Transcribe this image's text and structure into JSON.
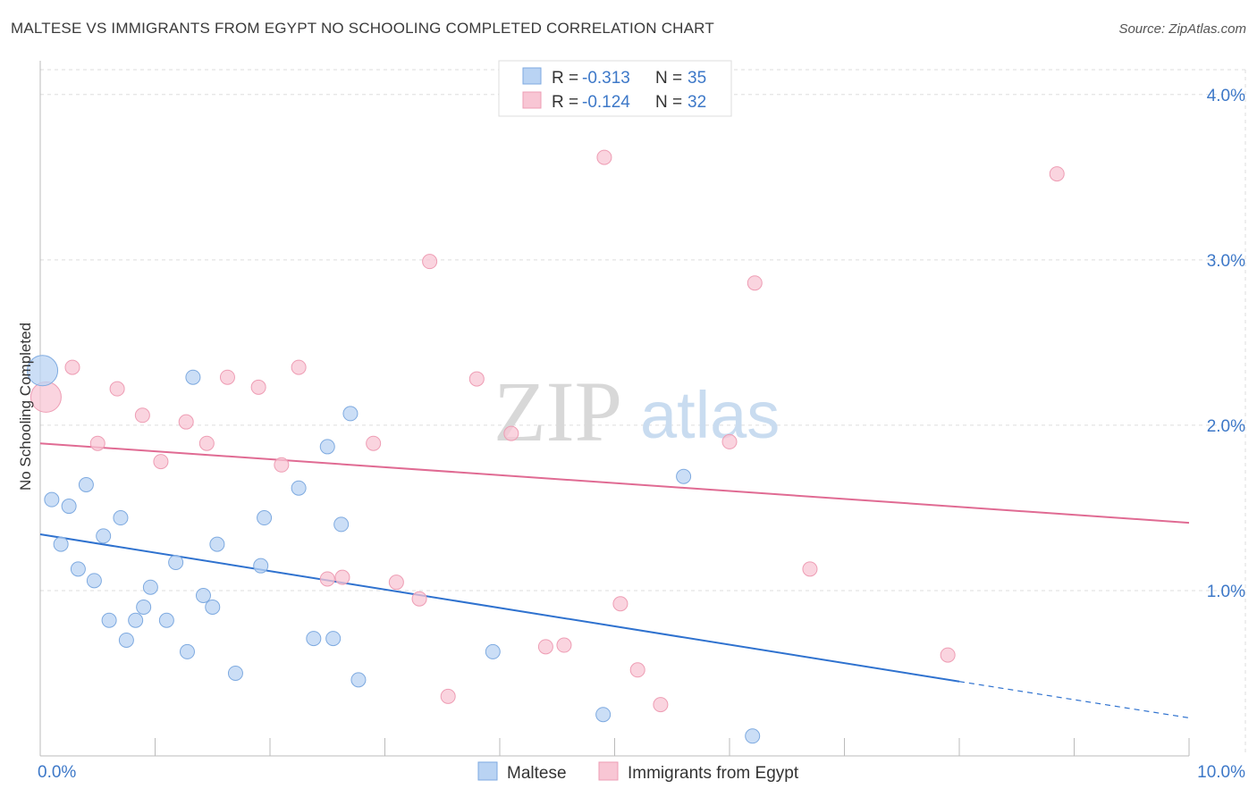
{
  "title": "MALTESE VS IMMIGRANTS FROM EGYPT NO SCHOOLING COMPLETED CORRELATION CHART",
  "source": "Source: ZipAtlas.com",
  "watermark": {
    "zip": "ZIP",
    "atlas": "atlas"
  },
  "colors": {
    "maltese_fill": "#b9d3f3",
    "maltese_stroke": "#7eaae0",
    "maltese_line": "#2f72cf",
    "egypt_fill": "#f8c6d4",
    "egypt_stroke": "#ee9db4",
    "egypt_line": "#e06b93",
    "tick_label": "#3d78c8",
    "grid": "#dddddd"
  },
  "legend": {
    "rows": [
      {
        "r_label": "R = ",
        "r_value": "-0.313",
        "n_label": "N = ",
        "n_value": "35"
      },
      {
        "r_label": "R = ",
        "r_value": "-0.124",
        "n_label": "N = ",
        "n_value": "32"
      }
    ]
  },
  "chart_data": {
    "type": "scatter",
    "title": "MALTESE VS IMMIGRANTS FROM EGYPT NO SCHOOLING COMPLETED CORRELATION CHART",
    "xlabel": "",
    "ylabel": "No Schooling Completed",
    "xlim": [
      0,
      10
    ],
    "ylim": [
      0,
      4.15
    ],
    "x_tick_labels": [
      {
        "value": 0,
        "label": "0.0%"
      },
      {
        "value": 10,
        "label": "10.0%"
      }
    ],
    "y_tick_labels": [
      {
        "value": 1,
        "label": "1.0%"
      },
      {
        "value": 2,
        "label": "2.0%"
      },
      {
        "value": 3,
        "label": "3.0%"
      },
      {
        "value": 4,
        "label": "4.0%"
      }
    ],
    "x_minor_ticks": [
      1,
      2,
      3,
      4,
      5,
      6,
      7,
      8,
      9,
      10
    ],
    "grid": true,
    "legend_position": "top-center",
    "series": [
      {
        "name": "Maltese",
        "r": -0.313,
        "n": 35,
        "trend": {
          "x0": 0,
          "y0": 1.34,
          "x1": 8.0,
          "y1": 0.45,
          "dashed_to_x": 10,
          "dashed_to_y": 0.23
        },
        "points": [
          {
            "x": 0.02,
            "y": 2.33,
            "size": "large"
          },
          {
            "x": 0.1,
            "y": 1.55
          },
          {
            "x": 0.18,
            "y": 1.28
          },
          {
            "x": 0.25,
            "y": 1.51
          },
          {
            "x": 0.33,
            "y": 1.13
          },
          {
            "x": 0.4,
            "y": 1.64
          },
          {
            "x": 0.47,
            "y": 1.06
          },
          {
            "x": 0.55,
            "y": 1.33
          },
          {
            "x": 0.6,
            "y": 0.82
          },
          {
            "x": 0.7,
            "y": 1.44
          },
          {
            "x": 0.75,
            "y": 0.7
          },
          {
            "x": 0.83,
            "y": 0.82
          },
          {
            "x": 0.9,
            "y": 0.9
          },
          {
            "x": 0.96,
            "y": 1.02
          },
          {
            "x": 1.1,
            "y": 0.82
          },
          {
            "x": 1.18,
            "y": 1.17
          },
          {
            "x": 1.28,
            "y": 0.63
          },
          {
            "x": 1.33,
            "y": 2.29
          },
          {
            "x": 1.42,
            "y": 0.97
          },
          {
            "x": 1.5,
            "y": 0.9
          },
          {
            "x": 1.54,
            "y": 1.28
          },
          {
            "x": 1.7,
            "y": 0.5
          },
          {
            "x": 1.92,
            "y": 1.15
          },
          {
            "x": 1.95,
            "y": 1.44
          },
          {
            "x": 2.25,
            "y": 1.62
          },
          {
            "x": 2.38,
            "y": 0.71
          },
          {
            "x": 2.5,
            "y": 1.87
          },
          {
            "x": 2.55,
            "y": 0.71
          },
          {
            "x": 2.62,
            "y": 1.4
          },
          {
            "x": 2.7,
            "y": 2.07
          },
          {
            "x": 2.77,
            "y": 0.46
          },
          {
            "x": 3.94,
            "y": 0.63
          },
          {
            "x": 4.9,
            "y": 0.25
          },
          {
            "x": 5.6,
            "y": 1.69
          },
          {
            "x": 6.2,
            "y": 0.12
          }
        ]
      },
      {
        "name": "Immigrants from Egypt",
        "r": -0.124,
        "n": 32,
        "trend": {
          "x0": 0,
          "y0": 1.89,
          "x1": 10,
          "y1": 1.41
        },
        "points": [
          {
            "x": 0.05,
            "y": 2.17,
            "size": "large"
          },
          {
            "x": 0.28,
            "y": 2.35
          },
          {
            "x": 0.5,
            "y": 1.89
          },
          {
            "x": 0.67,
            "y": 2.22
          },
          {
            "x": 0.89,
            "y": 2.06
          },
          {
            "x": 1.05,
            "y": 1.78
          },
          {
            "x": 1.27,
            "y": 2.02
          },
          {
            "x": 1.45,
            "y": 1.89
          },
          {
            "x": 1.63,
            "y": 2.29
          },
          {
            "x": 1.9,
            "y": 2.23
          },
          {
            "x": 2.1,
            "y": 1.76
          },
          {
            "x": 2.25,
            "y": 2.35
          },
          {
            "x": 2.5,
            "y": 1.07
          },
          {
            "x": 2.63,
            "y": 1.08
          },
          {
            "x": 2.9,
            "y": 1.89
          },
          {
            "x": 3.1,
            "y": 1.05
          },
          {
            "x": 3.3,
            "y": 0.95
          },
          {
            "x": 3.39,
            "y": 2.99
          },
          {
            "x": 3.55,
            "y": 0.36
          },
          {
            "x": 3.8,
            "y": 2.28
          },
          {
            "x": 4.1,
            "y": 1.95
          },
          {
            "x": 4.4,
            "y": 0.66
          },
          {
            "x": 4.56,
            "y": 0.67
          },
          {
            "x": 4.91,
            "y": 3.62
          },
          {
            "x": 5.05,
            "y": 0.92
          },
          {
            "x": 5.2,
            "y": 0.52
          },
          {
            "x": 5.4,
            "y": 0.31
          },
          {
            "x": 6.0,
            "y": 1.9
          },
          {
            "x": 6.22,
            "y": 2.86
          },
          {
            "x": 6.7,
            "y": 1.13
          },
          {
            "x": 7.9,
            "y": 0.61
          },
          {
            "x": 8.85,
            "y": 3.52
          }
        ]
      }
    ]
  }
}
